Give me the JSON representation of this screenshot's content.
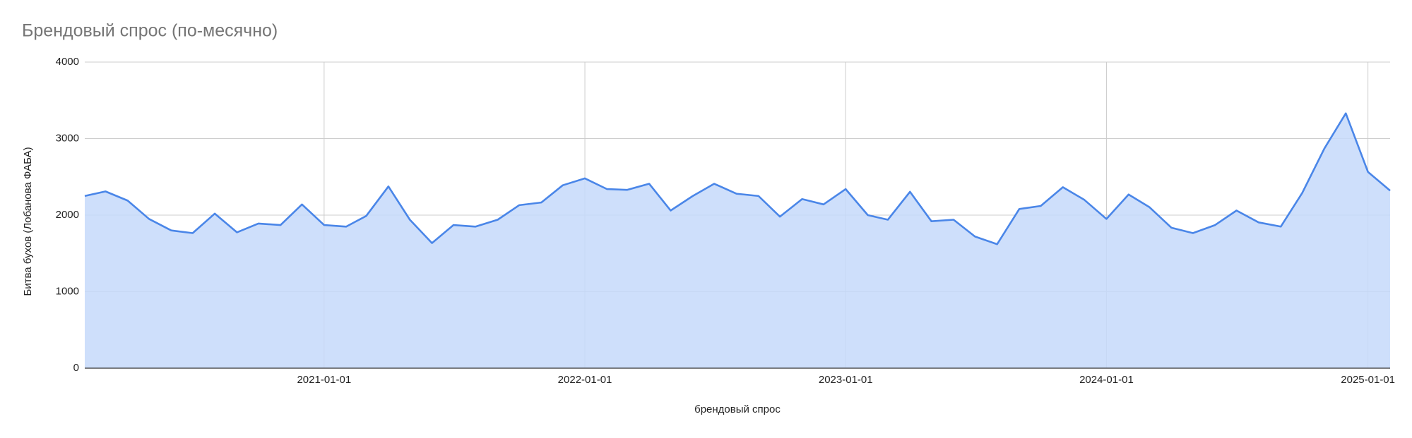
{
  "chart_data": {
    "type": "area",
    "title": "Брендовый спрос (по-месячно)",
    "x_label": "брендовый спрос",
    "y_label": "Битва бухов (Лобанова ФАБА)",
    "x": [
      "2020-02-01",
      "2020-03-01",
      "2020-04-01",
      "2020-05-01",
      "2020-06-01",
      "2020-07-01",
      "2020-08-01",
      "2020-09-01",
      "2020-10-01",
      "2020-11-01",
      "2020-12-01",
      "2021-01-01",
      "2021-02-01",
      "2021-03-01",
      "2021-04-01",
      "2021-05-01",
      "2021-06-01",
      "2021-07-01",
      "2021-08-01",
      "2021-09-01",
      "2021-10-01",
      "2021-11-01",
      "2021-12-01",
      "2022-01-01",
      "2022-02-01",
      "2022-03-01",
      "2022-04-01",
      "2022-05-01",
      "2022-06-01",
      "2022-07-01",
      "2022-08-01",
      "2022-09-01",
      "2022-10-01",
      "2022-11-01",
      "2022-12-01",
      "2023-01-01",
      "2023-02-01",
      "2023-03-01",
      "2023-04-01",
      "2023-05-01",
      "2023-06-01",
      "2023-07-01",
      "2023-08-01",
      "2023-09-01",
      "2023-10-01",
      "2023-11-01",
      "2023-12-01",
      "2024-01-01",
      "2024-02-01",
      "2024-03-01",
      "2024-04-01",
      "2024-05-01",
      "2024-06-01",
      "2024-07-01",
      "2024-08-01",
      "2024-09-01",
      "2024-10-01",
      "2024-11-01",
      "2024-12-01",
      "2025-01-01",
      "2025-02-01"
    ],
    "values": [
      2250,
      2310,
      2190,
      1950,
      1800,
      1765,
      2020,
      1775,
      1890,
      1870,
      2140,
      1870,
      1850,
      1990,
      2375,
      1940,
      1635,
      1870,
      1850,
      1940,
      2130,
      2165,
      2390,
      2480,
      2340,
      2330,
      2410,
      2060,
      2250,
      2410,
      2280,
      2250,
      1980,
      2210,
      2140,
      2340,
      2000,
      1940,
      2305,
      1920,
      1940,
      1720,
      1620,
      2080,
      2120,
      2365,
      2200,
      1950,
      2270,
      2105,
      1835,
      1765,
      1870,
      2060,
      1905,
      1850,
      2290,
      2870,
      3330,
      2565,
      2320
    ],
    "color": "#4a86e8",
    "fill_color": "#c6d9fa",
    "xlim": [
      "2020-02-01",
      "2025-02-01"
    ],
    "xticks": [
      "2021-01-01",
      "2022-01-01",
      "2023-01-01",
      "2024-01-01",
      "2025-01-01"
    ],
    "ylim": [
      0,
      4000
    ],
    "yticks": [
      0,
      1000,
      2000,
      3000,
      4000
    ],
    "grid": true
  }
}
